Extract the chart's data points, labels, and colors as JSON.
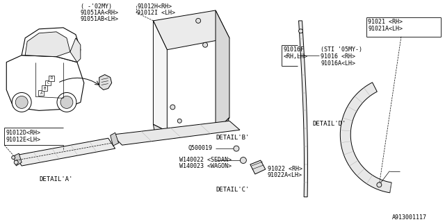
{
  "bg_color": "#ffffff",
  "line_color": "#000000",
  "text_color": "#000000",
  "part_number": "A913001117",
  "top_note": "( -'02MY)",
  "label_aa": "91051AA<RH>",
  "label_ab": "91051AB<LH>",
  "label_da": "91012D<RH>",
  "label_ea": "91012E<LH>",
  "detail_a": "DETAIL'A'",
  "label_bh": "91012H<RH>",
  "label_bi": "91012I <LH>",
  "detail_b": "DETAIL'B'",
  "label_q": "Q500019",
  "label_w1": "W140022 <SEDAN>",
  "label_w2": "W140023 <WAGON>",
  "label_c1": "91022 <RH>",
  "label_c2": "91022A<LH>",
  "detail_c": "DETAIL'C'",
  "label_d1": "91016F",
  "label_d2": "<RH,LH>",
  "label_d3": "(STI '05MY-)",
  "label_d4": "91016 <RH>",
  "label_d5": "91016A<LH>",
  "detail_d": "DETAIL'D'",
  "label_e1": "91021 <RH>",
  "label_e2": "91021A<LH>"
}
